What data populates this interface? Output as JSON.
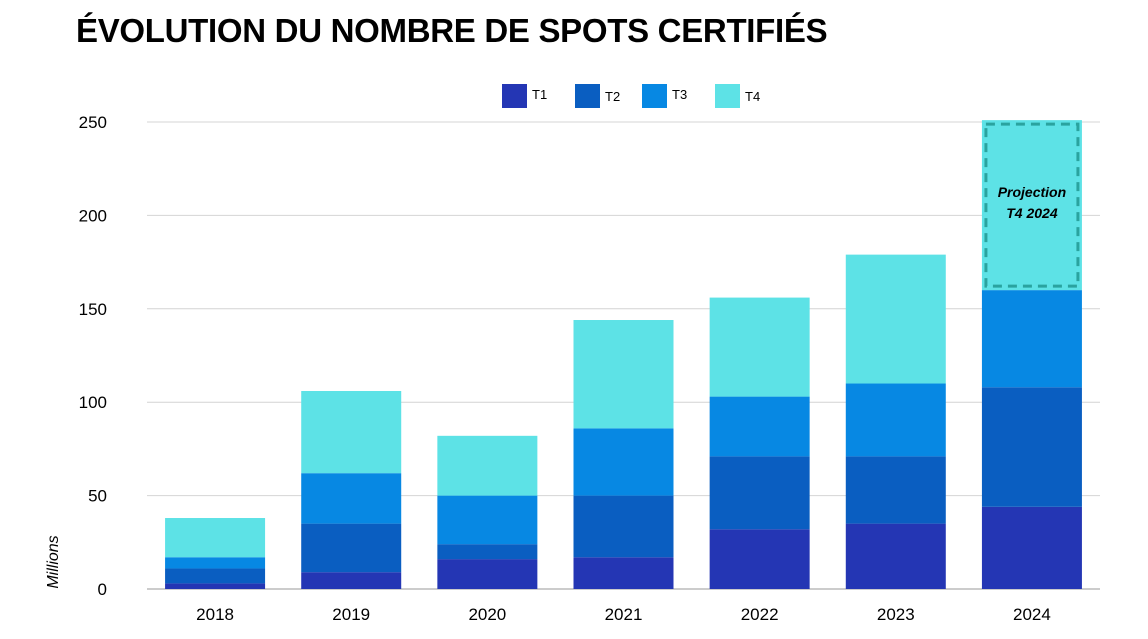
{
  "title": "ÉVOLUTION DU NOMBRE DE SPOTS CERTIFIÉS",
  "chart_data": {
    "type": "bar",
    "stacked": true,
    "title": "ÉVOLUTION DU NOMBRE DE SPOTS CERTIFIÉS",
    "ylabel": "Millions",
    "xlabel": "",
    "ylim": [
      0,
      250
    ],
    "yticks": [
      0,
      50,
      100,
      150,
      200,
      250
    ],
    "grid": true,
    "legend_position": "top-center",
    "categories": [
      "2018",
      "2019",
      "2020",
      "2021",
      "2022",
      "2023",
      "2024"
    ],
    "series": [
      {
        "name": "T1",
        "color": "#2436b4",
        "values": [
          3,
          9,
          16,
          17,
          32,
          35,
          44
        ]
      },
      {
        "name": "T2",
        "color": "#0a5ec1",
        "values": [
          8,
          26,
          8,
          33,
          39,
          36,
          64
        ]
      },
      {
        "name": "T3",
        "color": "#0788e3",
        "values": [
          6,
          27,
          26,
          36,
          32,
          39,
          52
        ]
      },
      {
        "name": "T4",
        "color": "#5de2e6",
        "values": [
          21,
          44,
          32,
          58,
          53,
          69,
          91
        ]
      }
    ],
    "annotation": {
      "category": "2024",
      "series": "T4",
      "lines": [
        "Projection",
        "T4 2024"
      ]
    }
  }
}
